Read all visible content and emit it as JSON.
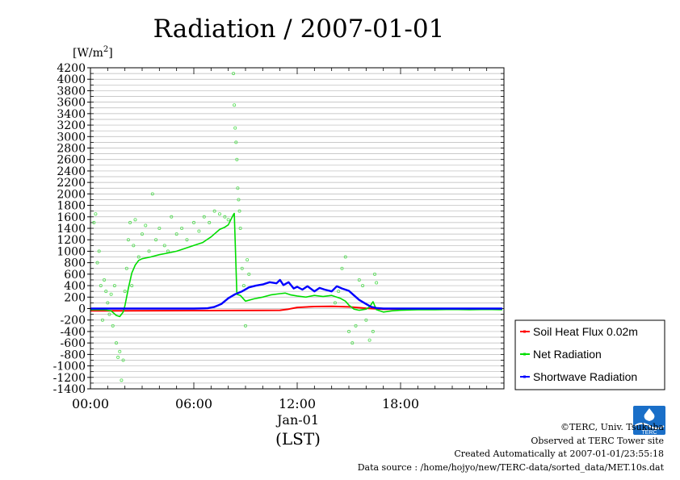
{
  "chart_data": {
    "type": "line",
    "title": "Radiation / 2007-01-01",
    "ylabel": "[W/m2]",
    "ylabel_main": "[W/m",
    "ylabel_sup": "2",
    "ylabel_end": "]",
    "xlabel": "Jan-01",
    "xlabel_sub": "(LST)",
    "ylim": [
      -1400,
      4200
    ],
    "xlim": [
      0,
      24
    ],
    "yticks": [
      -1400,
      -1200,
      -1000,
      -800,
      -600,
      -400,
      -200,
      0,
      200,
      400,
      600,
      800,
      1000,
      1200,
      1400,
      1600,
      1800,
      2000,
      2200,
      2400,
      2600,
      2800,
      3000,
      3200,
      3400,
      3600,
      3800,
      4000,
      4200
    ],
    "xticks": [
      0,
      6,
      12,
      18
    ],
    "xtick_labels": [
      "00:00",
      "06:00",
      "12:00",
      "18:00"
    ],
    "grid": true,
    "legend_position": "right",
    "series": [
      {
        "name": "Soil Heat Flux 0.02m",
        "color": "#ff0000",
        "x": [
          0,
          2,
          4,
          6,
          8,
          10,
          11,
          11.5,
          12,
          13,
          14,
          15,
          16,
          17,
          18,
          20,
          22,
          23.9
        ],
        "y": [
          -40,
          -38,
          -36,
          -35,
          -34,
          -32,
          -30,
          -10,
          20,
          35,
          40,
          30,
          5,
          -10,
          -8,
          -5,
          -8,
          -10
        ]
      },
      {
        "name": "Net Radiation",
        "color": "#00dd00",
        "x": [
          0,
          0.8,
          1.2,
          1.5,
          1.7,
          1.9,
          2.0,
          2.2,
          2.4,
          2.6,
          2.8,
          3.0,
          3.5,
          4.0,
          4.5,
          5.0,
          5.5,
          6.0,
          6.5,
          7.0,
          7.5,
          7.8,
          8.0,
          8.2,
          8.3,
          8.35,
          8.5,
          8.7,
          9.0,
          9.5,
          10.0,
          10.5,
          11.0,
          11.3,
          11.6,
          12.0,
          12.5,
          13.0,
          13.5,
          14.0,
          14.5,
          14.8,
          15.0,
          15.3,
          15.6,
          16.0,
          16.2,
          16.4,
          16.6,
          17.0,
          17.5,
          18.0,
          19.0,
          20.0,
          21.0,
          22.0,
          23.0,
          23.9
        ],
        "y": [
          -20,
          -20,
          -40,
          -120,
          -140,
          -60,
          50,
          350,
          620,
          760,
          840,
          870,
          900,
          940,
          970,
          1000,
          1050,
          1100,
          1150,
          1250,
          1380,
          1420,
          1460,
          1580,
          1640,
          1660,
          250,
          230,
          130,
          170,
          200,
          240,
          260,
          270,
          240,
          220,
          200,
          230,
          210,
          230,
          180,
          130,
          60,
          -10,
          -30,
          -10,
          30,
          120,
          -20,
          -60,
          -40,
          -30,
          -20,
          -20,
          -15,
          -20,
          -15,
          -20
        ]
      },
      {
        "name": "Shortwave Radiation",
        "color": "#0000ff",
        "x": [
          0,
          2,
          4,
          6,
          6.8,
          7.2,
          7.6,
          8.0,
          8.4,
          8.8,
          9.2,
          9.6,
          10.0,
          10.4,
          10.8,
          11.0,
          11.2,
          11.5,
          11.8,
          12.0,
          12.3,
          12.6,
          13.0,
          13.3,
          13.6,
          14.0,
          14.3,
          14.6,
          15.0,
          15.3,
          15.6,
          16.0,
          16.3,
          16.6,
          17.0,
          18.0,
          20.0,
          22.0,
          23.9
        ],
        "y": [
          0,
          0,
          0,
          0,
          5,
          30,
          80,
          180,
          250,
          300,
          370,
          400,
          420,
          460,
          440,
          500,
          410,
          460,
          350,
          380,
          330,
          390,
          300,
          360,
          330,
          300,
          390,
          350,
          310,
          230,
          150,
          80,
          30,
          10,
          0,
          0,
          0,
          0,
          0
        ]
      }
    ],
    "scatter_note": "",
    "scatter": {
      "color": "#55dd55",
      "points": [
        [
          0.2,
          1500
        ],
        [
          0.3,
          1650
        ],
        [
          0.4,
          800
        ],
        [
          0.5,
          1000
        ],
        [
          0.6,
          400
        ],
        [
          0.7,
          -200
        ],
        [
          0.8,
          500
        ],
        [
          0.9,
          300
        ],
        [
          1.0,
          100
        ],
        [
          1.1,
          -100
        ],
        [
          1.2,
          250
        ],
        [
          1.3,
          -300
        ],
        [
          1.4,
          400
        ],
        [
          1.5,
          -600
        ],
        [
          1.6,
          -850
        ],
        [
          1.7,
          -750
        ],
        [
          1.8,
          -1250
        ],
        [
          1.9,
          -900
        ],
        [
          2.0,
          300
        ],
        [
          2.1,
          700
        ],
        [
          2.2,
          1200
        ],
        [
          2.3,
          1500
        ],
        [
          2.4,
          400
        ],
        [
          2.5,
          1100
        ],
        [
          2.6,
          1550
        ],
        [
          2.8,
          900
        ],
        [
          3.0,
          1300
        ],
        [
          3.2,
          1450
        ],
        [
          3.4,
          1000
        ],
        [
          3.6,
          2000
        ],
        [
          3.8,
          1200
        ],
        [
          4.0,
          1400
        ],
        [
          4.3,
          1100
        ],
        [
          4.5,
          1000
        ],
        [
          4.7,
          1600
        ],
        [
          5.0,
          1300
        ],
        [
          5.3,
          1400
        ],
        [
          5.6,
          1200
        ],
        [
          6.0,
          1500
        ],
        [
          6.3,
          1350
        ],
        [
          6.6,
          1600
        ],
        [
          6.9,
          1500
        ],
        [
          7.2,
          1700
        ],
        [
          7.5,
          1650
        ],
        [
          7.8,
          1600
        ],
        [
          8.0,
          1550
        ],
        [
          8.3,
          4100
        ],
        [
          8.35,
          3550
        ],
        [
          8.4,
          3150
        ],
        [
          8.45,
          2900
        ],
        [
          8.5,
          2600
        ],
        [
          8.55,
          2100
        ],
        [
          8.6,
          1900
        ],
        [
          8.65,
          1700
        ],
        [
          8.7,
          1400
        ],
        [
          8.8,
          700
        ],
        [
          8.9,
          400
        ],
        [
          9.0,
          -300
        ],
        [
          9.1,
          850
        ],
        [
          9.2,
          600
        ],
        [
          14.2,
          100
        ],
        [
          14.4,
          300
        ],
        [
          14.6,
          700
        ],
        [
          14.8,
          900
        ],
        [
          15.0,
          -400
        ],
        [
          15.2,
          -600
        ],
        [
          15.4,
          -300
        ],
        [
          15.6,
          500
        ],
        [
          15.8,
          400
        ],
        [
          16.0,
          -200
        ],
        [
          16.2,
          -550
        ],
        [
          16.4,
          -400
        ],
        [
          16.5,
          600
        ],
        [
          16.6,
          450
        ]
      ]
    }
  },
  "credits": {
    "copyright": "©TERC, Univ. Tsukuba",
    "site": "Observed at TERC Tower site",
    "created": "Created Automatically at 2007-01-01/23:55:18",
    "source": "Data source : /home/hojyo/new/TERC-data/sorted_data/MET.10s.dat"
  },
  "logo": {
    "text": "TERC"
  }
}
